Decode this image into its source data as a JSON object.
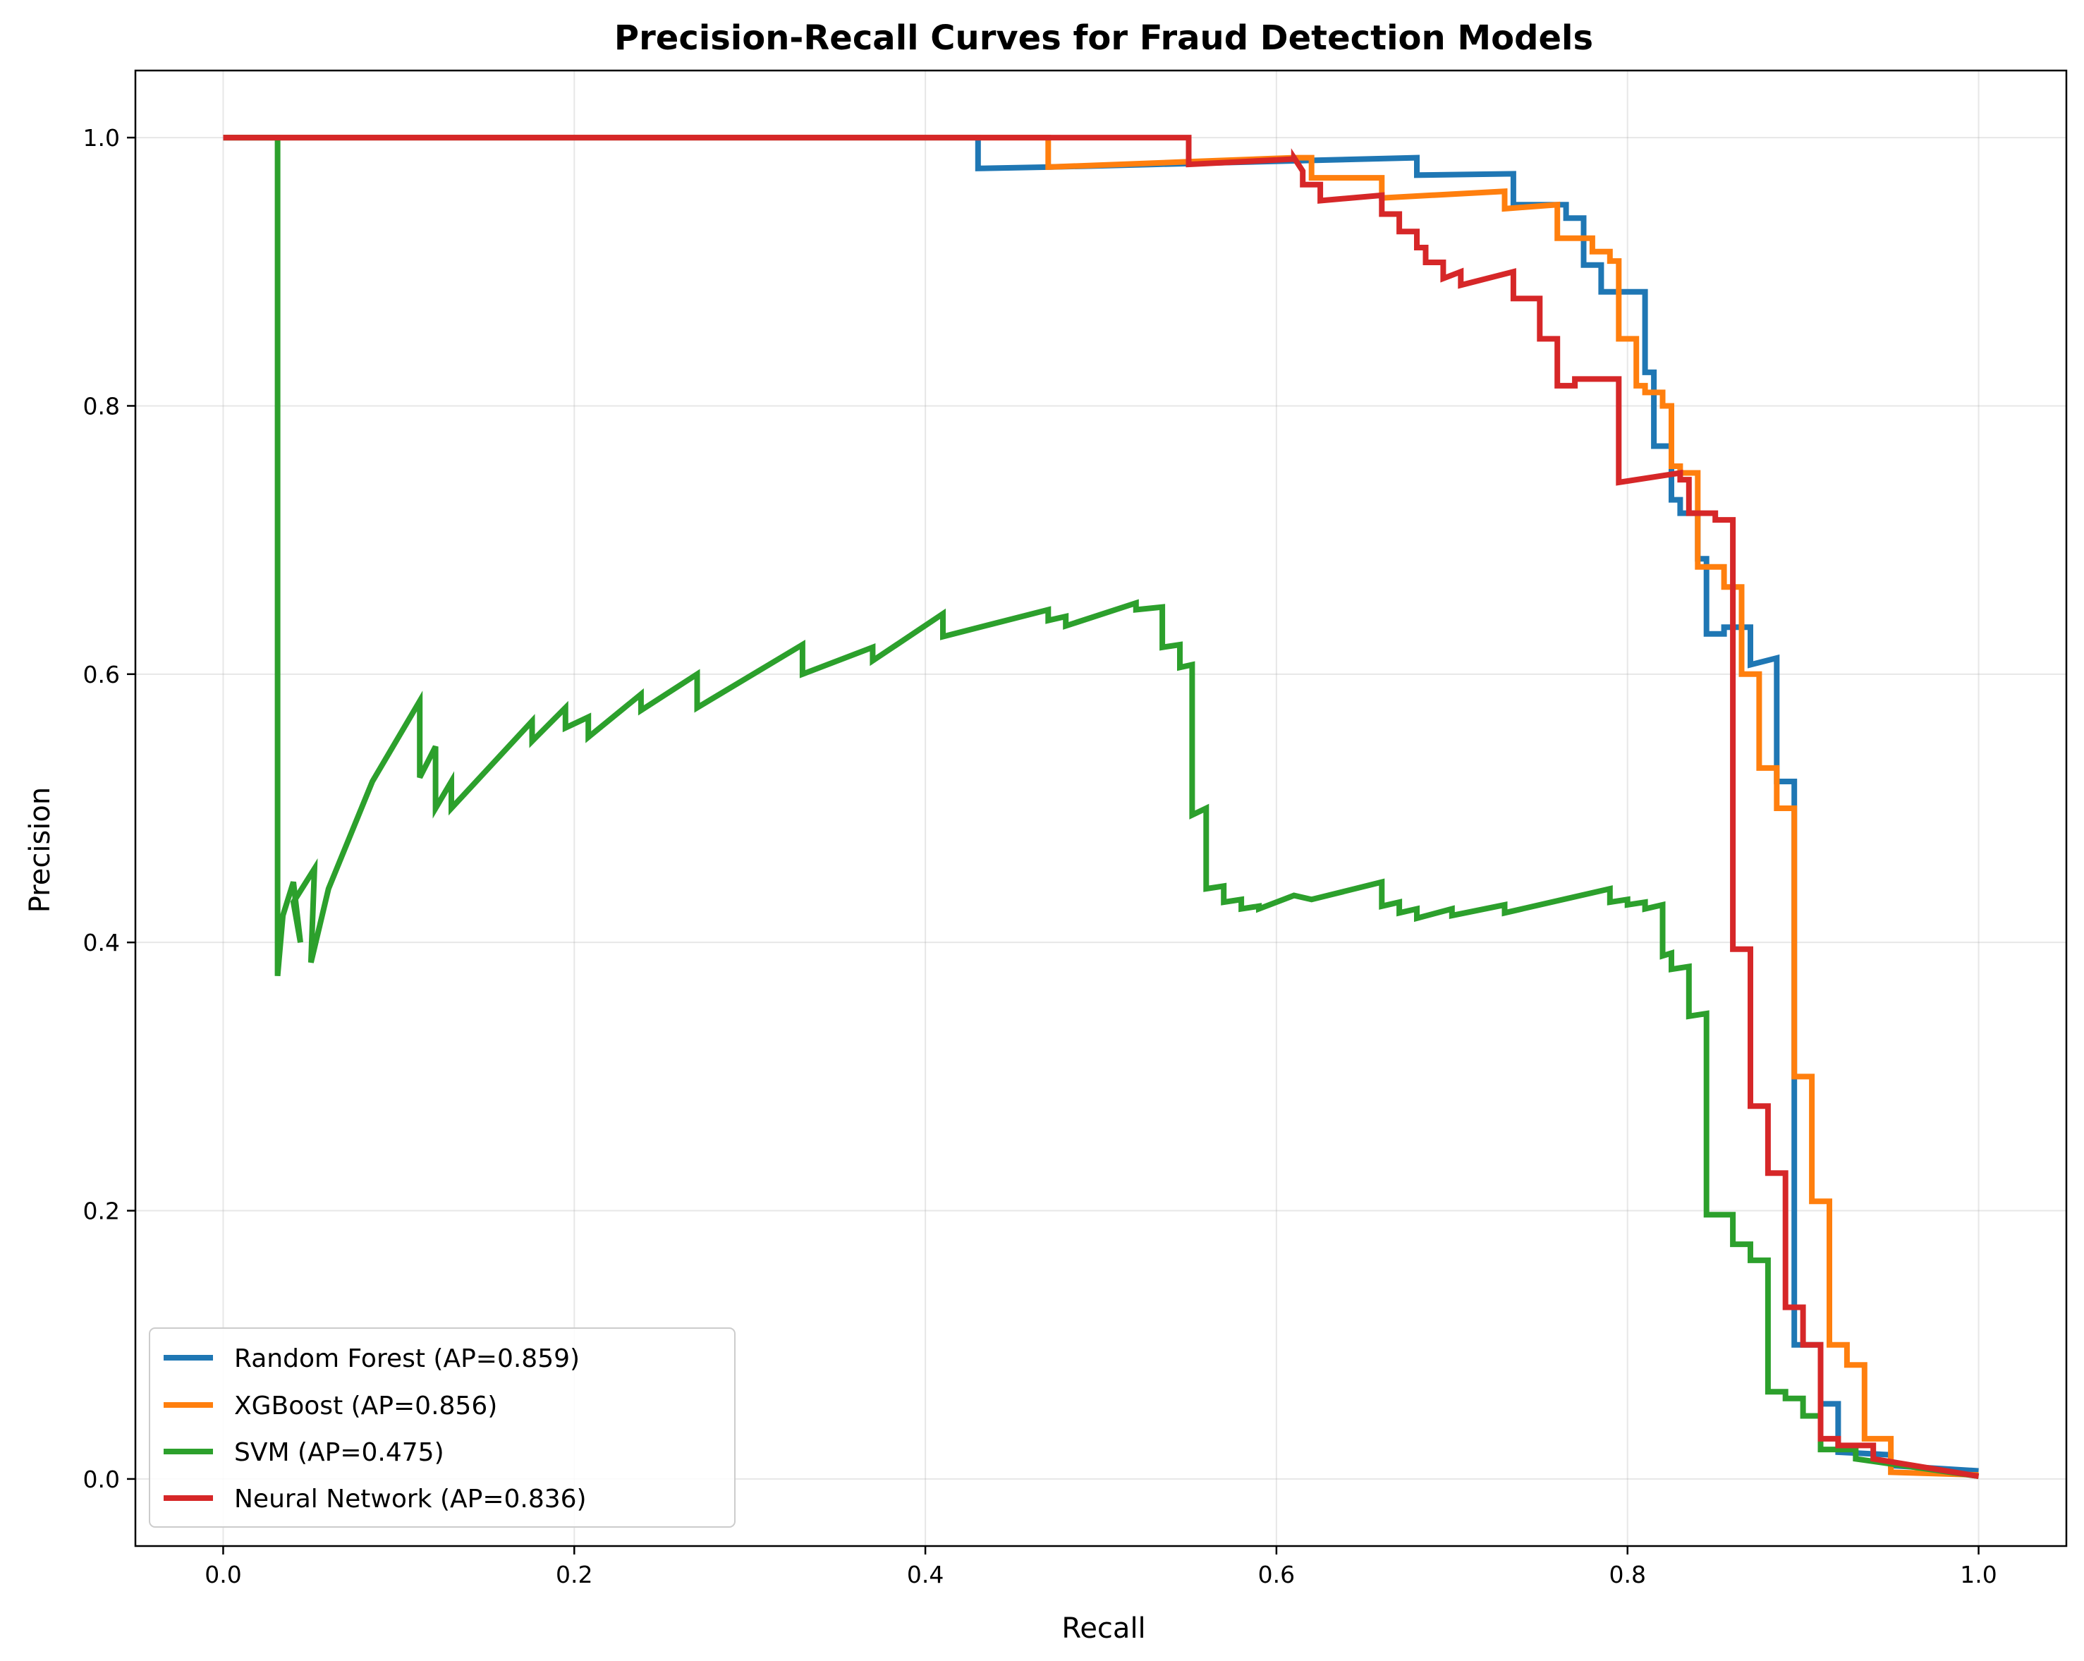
{
  "chart_data": {
    "type": "line",
    "title": "Precision-Recall Curves for Fraud Detection Models",
    "xlabel": "Recall",
    "ylabel": "Precision",
    "xlim": [
      -0.05,
      1.05
    ],
    "ylim": [
      -0.05,
      1.05
    ],
    "xticks": [
      "0.0",
      "0.2",
      "0.4",
      "0.6",
      "0.8",
      "1.0"
    ],
    "yticks": [
      "0.0",
      "0.2",
      "0.4",
      "0.6",
      "0.8",
      "1.0"
    ],
    "grid": true,
    "legend_position": "lower-left",
    "series": [
      {
        "name": "Random Forest (AP=0.859)",
        "color": "#1f77b4",
        "step": true,
        "x": [
          0.0,
          0.43,
          0.43,
          0.47,
          0.53,
          0.62,
          0.68,
          0.68,
          0.735,
          0.735,
          0.765,
          0.765,
          0.775,
          0.775,
          0.785,
          0.785,
          0.81,
          0.81,
          0.815,
          0.815,
          0.825,
          0.825,
          0.83,
          0.83,
          0.84,
          0.84,
          0.845,
          0.845,
          0.855,
          0.855,
          0.87,
          0.87,
          0.885,
          0.885,
          0.895,
          0.895,
          0.91,
          0.91,
          0.92,
          0.92,
          0.95,
          0.95,
          1.0
        ],
        "y": [
          1.0,
          1.0,
          0.977,
          0.978,
          0.98,
          0.983,
          0.985,
          0.972,
          0.973,
          0.95,
          0.95,
          0.94,
          0.94,
          0.905,
          0.905,
          0.885,
          0.885,
          0.825,
          0.825,
          0.77,
          0.77,
          0.73,
          0.73,
          0.72,
          0.72,
          0.686,
          0.686,
          0.63,
          0.63,
          0.635,
          0.635,
          0.607,
          0.612,
          0.52,
          0.52,
          0.1,
          0.1,
          0.056,
          0.056,
          0.02,
          0.018,
          0.01,
          0.006
        ]
      },
      {
        "name": "XGBoost (AP=0.856)",
        "color": "#ff7f0e",
        "step": true,
        "x": [
          0.0,
          0.47,
          0.47,
          0.55,
          0.61,
          0.62,
          0.62,
          0.66,
          0.66,
          0.73,
          0.73,
          0.76,
          0.76,
          0.78,
          0.78,
          0.79,
          0.79,
          0.795,
          0.795,
          0.805,
          0.805,
          0.81,
          0.81,
          0.82,
          0.82,
          0.825,
          0.825,
          0.83,
          0.83,
          0.84,
          0.84,
          0.855,
          0.855,
          0.865,
          0.865,
          0.875,
          0.875,
          0.885,
          0.885,
          0.895,
          0.895,
          0.905,
          0.905,
          0.915,
          0.915,
          0.925,
          0.925,
          0.935,
          0.935,
          0.95,
          0.95,
          1.0
        ],
        "y": [
          1.0,
          1.0,
          0.978,
          0.982,
          0.985,
          0.985,
          0.97,
          0.97,
          0.955,
          0.96,
          0.947,
          0.95,
          0.925,
          0.925,
          0.915,
          0.915,
          0.908,
          0.908,
          0.85,
          0.85,
          0.815,
          0.815,
          0.81,
          0.81,
          0.8,
          0.8,
          0.755,
          0.755,
          0.75,
          0.75,
          0.68,
          0.68,
          0.665,
          0.665,
          0.6,
          0.6,
          0.53,
          0.53,
          0.5,
          0.5,
          0.3,
          0.3,
          0.207,
          0.207,
          0.1,
          0.1,
          0.085,
          0.085,
          0.03,
          0.03,
          0.005,
          0.003
        ]
      },
      {
        "name": "SVM (AP=0.475)",
        "color": "#2ca02c",
        "step": true,
        "x": [
          0.0,
          0.031,
          0.031,
          0.034,
          0.04,
          0.044,
          0.04,
          0.052,
          0.05,
          0.06,
          0.085,
          0.112,
          0.112,
          0.121,
          0.121,
          0.13,
          0.13,
          0.176,
          0.176,
          0.195,
          0.195,
          0.208,
          0.208,
          0.238,
          0.238,
          0.27,
          0.27,
          0.33,
          0.33,
          0.37,
          0.37,
          0.41,
          0.41,
          0.47,
          0.47,
          0.48,
          0.48,
          0.52,
          0.52,
          0.535,
          0.535,
          0.545,
          0.545,
          0.552,
          0.552,
          0.56,
          0.56,
          0.57,
          0.57,
          0.58,
          0.58,
          0.59,
          0.59,
          0.61,
          0.62,
          0.66,
          0.66,
          0.67,
          0.67,
          0.68,
          0.68,
          0.7,
          0.7,
          0.73,
          0.73,
          0.79,
          0.79,
          0.8,
          0.8,
          0.81,
          0.81,
          0.82,
          0.82,
          0.825,
          0.825,
          0.835,
          0.835,
          0.845,
          0.845,
          0.86,
          0.86,
          0.87,
          0.87,
          0.88,
          0.88,
          0.89,
          0.89,
          0.9,
          0.9,
          0.91,
          0.91,
          0.93,
          0.93,
          1.0
        ],
        "y": [
          1.0,
          1.0,
          0.375,
          0.42,
          0.445,
          0.4,
          0.43,
          0.455,
          0.385,
          0.44,
          0.52,
          0.58,
          0.523,
          0.546,
          0.5,
          0.52,
          0.5,
          0.565,
          0.55,
          0.575,
          0.56,
          0.568,
          0.553,
          0.585,
          0.573,
          0.6,
          0.575,
          0.622,
          0.6,
          0.62,
          0.61,
          0.645,
          0.628,
          0.648,
          0.64,
          0.643,
          0.636,
          0.653,
          0.648,
          0.65,
          0.62,
          0.622,
          0.605,
          0.607,
          0.495,
          0.5,
          0.44,
          0.442,
          0.43,
          0.432,
          0.425,
          0.427,
          0.425,
          0.435,
          0.432,
          0.445,
          0.427,
          0.43,
          0.422,
          0.425,
          0.418,
          0.425,
          0.42,
          0.428,
          0.422,
          0.44,
          0.43,
          0.432,
          0.428,
          0.43,
          0.425,
          0.428,
          0.39,
          0.392,
          0.38,
          0.382,
          0.345,
          0.347,
          0.197,
          0.197,
          0.175,
          0.175,
          0.163,
          0.163,
          0.065,
          0.065,
          0.06,
          0.06,
          0.047,
          0.047,
          0.022,
          0.022,
          0.015,
          0.002
        ]
      },
      {
        "name": "Neural Network (AP=0.836)",
        "color": "#d62728",
        "step": true,
        "x": [
          0.0,
          0.55,
          0.55,
          0.61,
          0.61,
          0.615,
          0.615,
          0.625,
          0.625,
          0.66,
          0.66,
          0.67,
          0.67,
          0.68,
          0.68,
          0.685,
          0.685,
          0.695,
          0.695,
          0.705,
          0.705,
          0.735,
          0.735,
          0.75,
          0.75,
          0.76,
          0.76,
          0.77,
          0.77,
          0.795,
          0.795,
          0.83,
          0.83,
          0.835,
          0.835,
          0.85,
          0.85,
          0.86,
          0.86,
          0.87,
          0.87,
          0.88,
          0.88,
          0.89,
          0.89,
          0.9,
          0.9,
          0.91,
          0.91,
          0.92,
          0.92,
          0.94,
          0.94,
          1.0
        ],
        "y": [
          1.0,
          1.0,
          0.98,
          0.984,
          0.985,
          0.975,
          0.965,
          0.965,
          0.953,
          0.957,
          0.943,
          0.943,
          0.93,
          0.93,
          0.918,
          0.918,
          0.907,
          0.907,
          0.895,
          0.9,
          0.89,
          0.9,
          0.88,
          0.88,
          0.85,
          0.85,
          0.815,
          0.815,
          0.82,
          0.82,
          0.743,
          0.75,
          0.745,
          0.745,
          0.72,
          0.72,
          0.715,
          0.715,
          0.395,
          0.395,
          0.278,
          0.278,
          0.228,
          0.228,
          0.128,
          0.128,
          0.1,
          0.1,
          0.03,
          0.03,
          0.025,
          0.025,
          0.015,
          0.002
        ]
      }
    ]
  }
}
